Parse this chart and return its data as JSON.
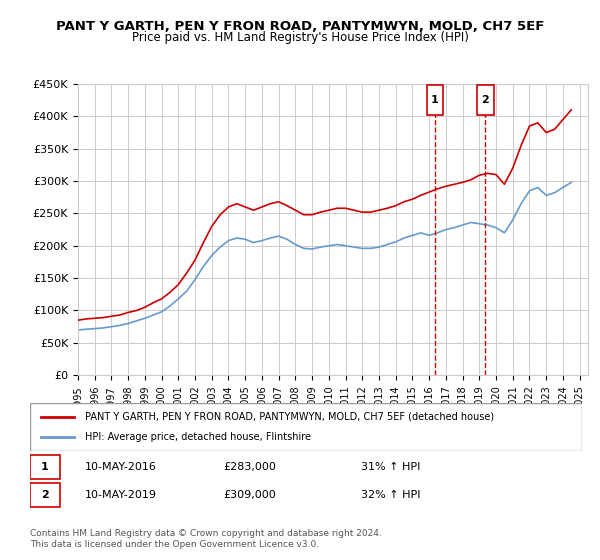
{
  "title": "PANT Y GARTH, PEN Y FRON ROAD, PANTYMWYN, MOLD, CH7 5EF",
  "subtitle": "Price paid vs. HM Land Registry's House Price Index (HPI)",
  "legend_line1": "PANT Y GARTH, PEN Y FRON ROAD, PANTYMWYN, MOLD, CH7 5EF (detached house)",
  "legend_line2": "HPI: Average price, detached house, Flintshire",
  "footer": "Contains HM Land Registry data © Crown copyright and database right 2024.\nThis data is licensed under the Open Government Licence v3.0.",
  "marker1_date": "10-MAY-2016",
  "marker1_price": "£283,000",
  "marker1_hpi": "31% ↑ HPI",
  "marker2_date": "10-MAY-2019",
  "marker2_price": "£309,000",
  "marker2_hpi": "32% ↑ HPI",
  "ylim": [
    0,
    450000
  ],
  "xlim_start": 1995.0,
  "xlim_end": 2025.5,
  "red_color": "#cc0000",
  "blue_color": "#6699cc",
  "grid_color": "#cccccc",
  "bg_color": "#ffffff",
  "marker1_x": 2016.35,
  "marker2_x": 2019.35,
  "red_x": [
    1995.0,
    1995.5,
    1996.0,
    1996.5,
    1997.0,
    1997.5,
    1998.0,
    1998.5,
    1999.0,
    1999.5,
    2000.0,
    2000.5,
    2001.0,
    2001.5,
    2002.0,
    2002.5,
    2003.0,
    2003.5,
    2004.0,
    2004.5,
    2005.0,
    2005.5,
    2006.0,
    2006.5,
    2007.0,
    2007.5,
    2008.0,
    2008.5,
    2009.0,
    2009.5,
    2010.0,
    2010.5,
    2011.0,
    2011.5,
    2012.0,
    2012.5,
    2013.0,
    2013.5,
    2014.0,
    2014.5,
    2015.0,
    2015.5,
    2016.0,
    2016.5,
    2017.0,
    2017.5,
    2018.0,
    2018.5,
    2019.0,
    2019.5,
    2020.0,
    2020.5,
    2021.0,
    2021.5,
    2022.0,
    2022.5,
    2023.0,
    2023.5,
    2024.0,
    2024.5
  ],
  "red_y": [
    85000,
    87000,
    88000,
    89000,
    91000,
    93000,
    97000,
    100000,
    105000,
    112000,
    118000,
    128000,
    140000,
    158000,
    178000,
    205000,
    230000,
    248000,
    260000,
    265000,
    260000,
    255000,
    260000,
    265000,
    268000,
    262000,
    255000,
    248000,
    248000,
    252000,
    255000,
    258000,
    258000,
    255000,
    252000,
    252000,
    255000,
    258000,
    262000,
    268000,
    272000,
    278000,
    283000,
    288000,
    292000,
    295000,
    298000,
    302000,
    309000,
    312000,
    310000,
    295000,
    320000,
    355000,
    385000,
    390000,
    375000,
    380000,
    395000,
    410000
  ],
  "blue_x": [
    1995.0,
    1995.5,
    1996.0,
    1996.5,
    1997.0,
    1997.5,
    1998.0,
    1998.5,
    1999.0,
    1999.5,
    2000.0,
    2000.5,
    2001.0,
    2001.5,
    2002.0,
    2002.5,
    2003.0,
    2003.5,
    2004.0,
    2004.5,
    2005.0,
    2005.5,
    2006.0,
    2006.5,
    2007.0,
    2007.5,
    2008.0,
    2008.5,
    2009.0,
    2009.5,
    2010.0,
    2010.5,
    2011.0,
    2011.5,
    2012.0,
    2012.5,
    2013.0,
    2013.5,
    2014.0,
    2014.5,
    2015.0,
    2015.5,
    2016.0,
    2016.5,
    2017.0,
    2017.5,
    2018.0,
    2018.5,
    2019.0,
    2019.5,
    2020.0,
    2020.5,
    2021.0,
    2021.5,
    2022.0,
    2022.5,
    2023.0,
    2023.5,
    2024.0,
    2024.5
  ],
  "blue_y": [
    70000,
    71000,
    72000,
    73000,
    75000,
    77000,
    80000,
    84000,
    88000,
    93000,
    98000,
    107000,
    118000,
    130000,
    148000,
    168000,
    185000,
    198000,
    208000,
    212000,
    210000,
    205000,
    208000,
    212000,
    215000,
    210000,
    202000,
    196000,
    195000,
    198000,
    200000,
    202000,
    200000,
    198000,
    196000,
    196000,
    198000,
    202000,
    206000,
    212000,
    216000,
    220000,
    216000,
    220000,
    225000,
    228000,
    232000,
    236000,
    234000,
    232000,
    228000,
    220000,
    240000,
    265000,
    285000,
    290000,
    278000,
    282000,
    290000,
    298000
  ]
}
